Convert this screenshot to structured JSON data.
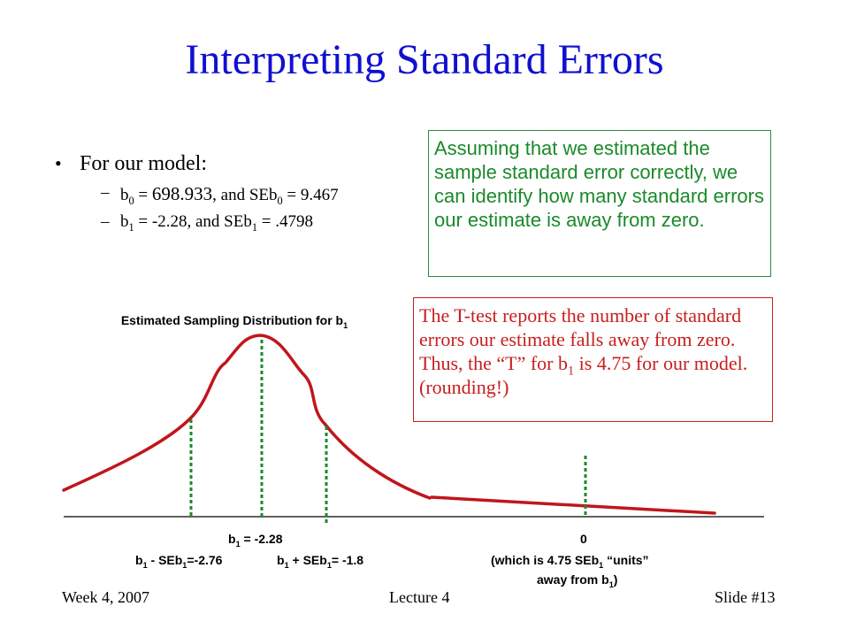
{
  "slide": {
    "title": "Interpreting Standard Errors"
  },
  "bullets": {
    "main": "For our model:",
    "sub1": {
      "a": "b",
      "a_sub": "0",
      "b": " = ",
      "c": "698.933",
      "d": ", and SEb",
      "d_sub": "0",
      "e": " = 9.467"
    },
    "sub2": {
      "a": "b",
      "a_sub": "1",
      "b": " =  -2.28, and SEb",
      "b_sub": "1",
      "c": " = .4798"
    }
  },
  "green_box": {
    "text": "Assuming that we estimated the sample standard error correctly, we can identify how many standard errors our estimate is away from zero."
  },
  "red_box": {
    "text1": "The T-test reports the number of standard errors our estimate falls away from zero.  Thus, the “T” for b",
    "text_sub": "1",
    "text2": " is 4.75 for our model. (rounding!)"
  },
  "chart": {
    "title": "Estimated Sampling Distribution for b",
    "title_sub": "1",
    "labels": {
      "center": {
        "a": "b",
        "a_sub": "1",
        "b": " = -2.28"
      },
      "minus": {
        "a": "b",
        "a_sub": "1",
        "b": " - SEb",
        "b_sub": "1",
        "c": "=-2.76"
      },
      "plus": {
        "a": "b",
        "a_sub": "1",
        "b": " + SEb",
        "b_sub": "1",
        "c": "= -1.8"
      },
      "zero": "0",
      "zero_note1": {
        "a": "(which is 4.75 SEb",
        "a_sub": "1",
        "b": " “units”"
      },
      "zero_note2": {
        "a": "away from b",
        "a_sub": "1",
        "b": ")"
      }
    },
    "colors": {
      "curve": "#c0161c",
      "dotted": "#1a8a2a",
      "axis": "#000000"
    }
  },
  "footer": {
    "left": "Week 4, 2007",
    "center": "Lecture  4",
    "right": "Slide #13"
  }
}
